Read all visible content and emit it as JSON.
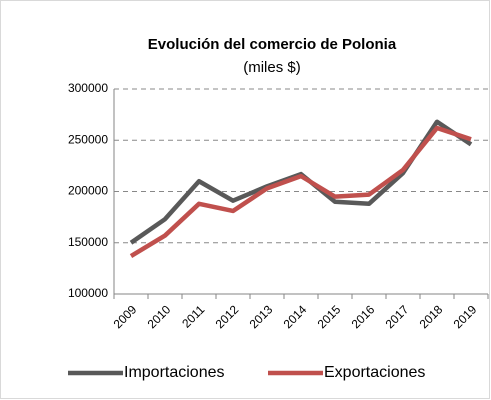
{
  "chart_data": {
    "type": "line",
    "title": "Evolución del comercio de Polonia",
    "subtitle": "(miles $)",
    "categories": [
      "2009",
      "2010",
      "2011",
      "2012",
      "2013",
      "2014",
      "2015",
      "2016",
      "2017",
      "2018",
      "2019"
    ],
    "series": [
      {
        "name": "Importaciones",
        "color": "#595959",
        "values": [
          150000,
          173000,
          210000,
          191000,
          205000,
          217000,
          190000,
          188000,
          218000,
          268000,
          246000
        ]
      },
      {
        "name": "Exportaciones",
        "color": "#c0504d",
        "values": [
          137000,
          157000,
          188000,
          181000,
          203000,
          215000,
          195000,
          197000,
          221000,
          262000,
          251000
        ]
      }
    ],
    "ylim": [
      100000,
      300000
    ],
    "yticks": [
      100000,
      150000,
      200000,
      250000,
      300000
    ],
    "grid": true,
    "legend": "bottom"
  }
}
